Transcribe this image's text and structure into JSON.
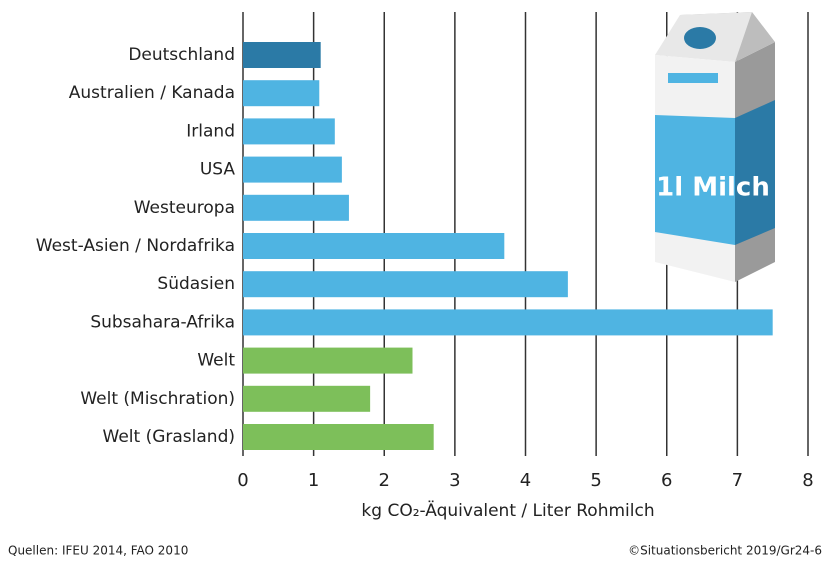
{
  "chart_data": {
    "type": "barh",
    "categories": [
      "Deutschland",
      "Australien / Kanada",
      "Irland",
      "USA",
      "Westeuropa",
      "West-Asien / Nordafrika",
      "Südasien",
      "Subsahara-Afrika",
      "Welt",
      "Welt (Mischration)",
      "Welt (Grasland)"
    ],
    "values": [
      1.1,
      1.08,
      1.3,
      1.4,
      1.5,
      3.7,
      4.6,
      7.5,
      2.4,
      1.8,
      2.7
    ],
    "colors": [
      "#2b7aa6",
      "#4fb4e2",
      "#4fb4e2",
      "#4fb4e2",
      "#4fb4e2",
      "#4fb4e2",
      "#4fb4e2",
      "#4fb4e2",
      "#7dbf5a",
      "#7dbf5a",
      "#7dbf5a"
    ],
    "xlabel": "kg CO₂-Äquivalent / Liter Rohmilch",
    "xlim": [
      0,
      8
    ],
    "xticks": [
      0,
      1,
      2,
      3,
      4,
      5,
      6,
      7,
      8
    ],
    "grid": true,
    "illustration_label": "1l Milch",
    "source": "Quellen: IFEU 2014, FAO 2010",
    "credit": "©Situationsbericht 2019/Gr24-6"
  }
}
